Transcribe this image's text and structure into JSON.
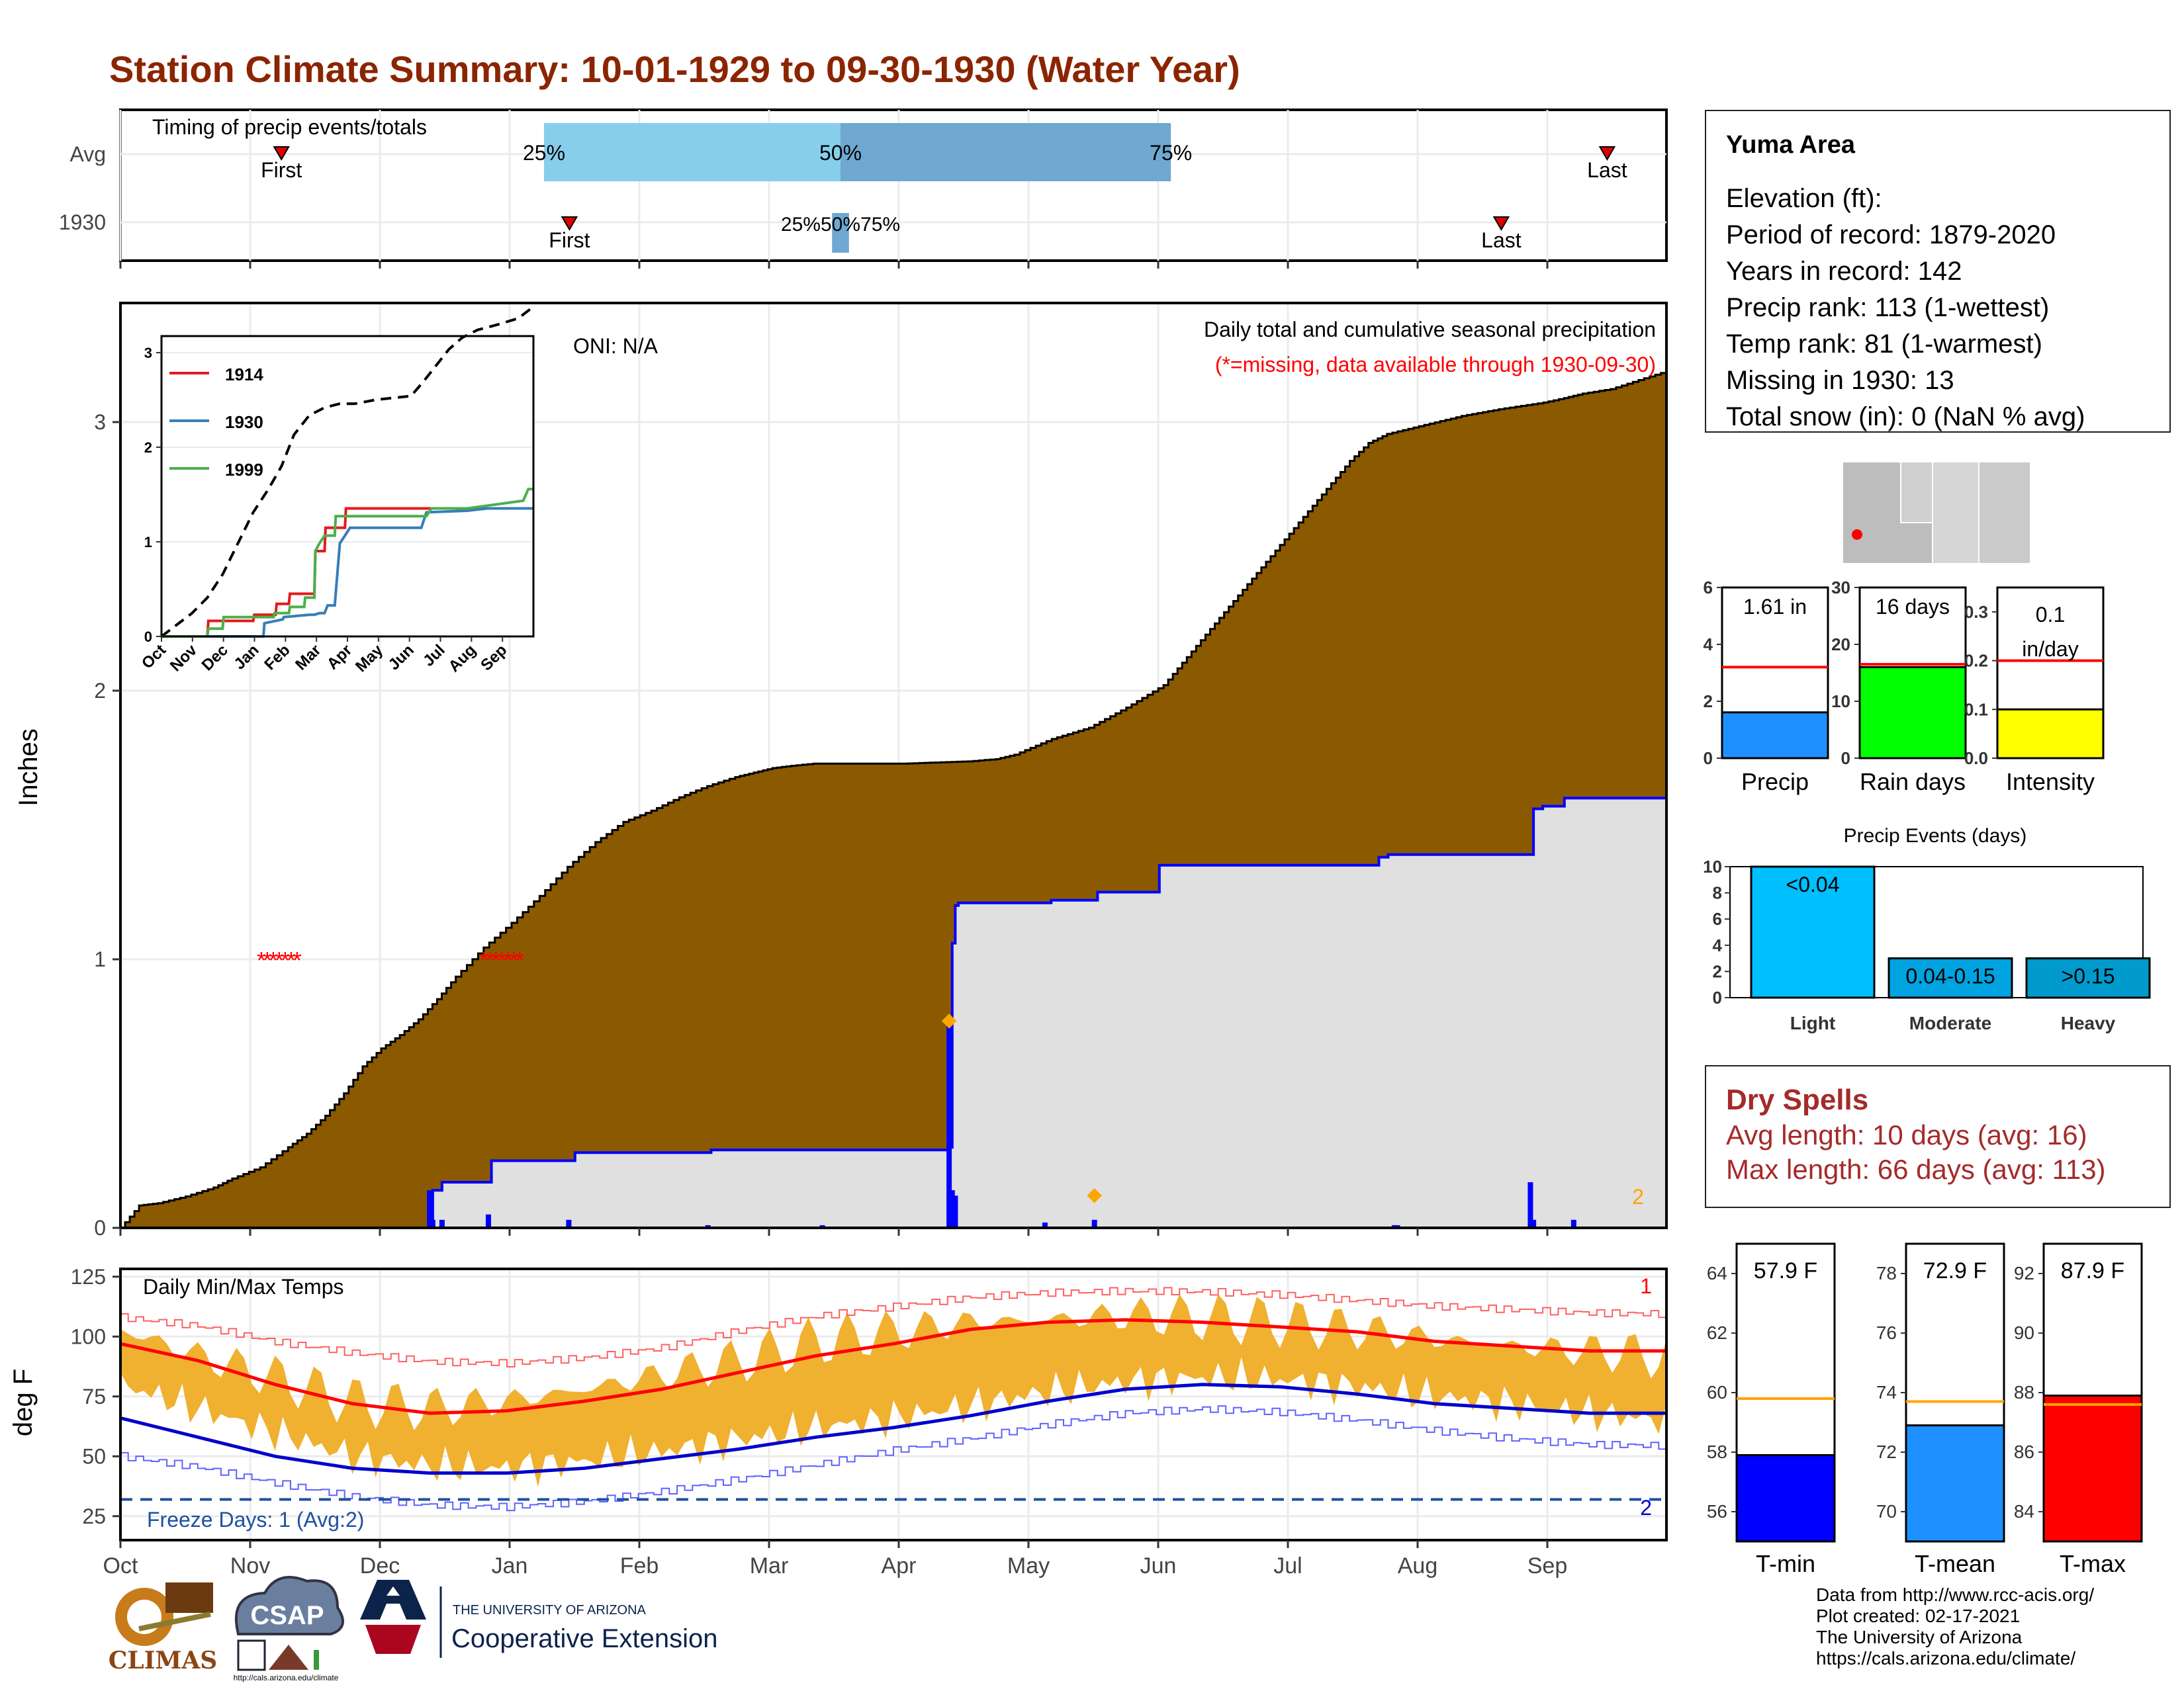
{
  "page": {
    "title": "Station Climate Summary: 10-01-1929 to 09-30-1930 (Water Year)"
  },
  "timing_panel": {
    "label": "Timing of precip events/totals",
    "rows": [
      "Avg",
      "1930"
    ],
    "avg": {
      "q25_label": "25%",
      "q50_label": "50%",
      "q75_label": "75%",
      "first_label": "First",
      "last_label": "Last",
      "first_doy": 38,
      "q25_doy": 100,
      "q50_doy": 170,
      "q75_doy": 248,
      "last_doy": 351
    },
    "year": {
      "q_label": "25%50%75%",
      "first_label": "First",
      "last_label": "Last",
      "first_doy": 106,
      "q25_doy": 168,
      "q75_doy": 172,
      "last_doy": 326
    }
  },
  "precip_panel": {
    "ylabel": "Inches",
    "yticks": [
      "0",
      "1",
      "2",
      "3"
    ],
    "oni": "ONI: N/A",
    "note1": "Daily total and cumulative seasonal precipitation",
    "note2": "(*=missing, data available through 1930-09-30)",
    "missing_marker": "*",
    "corner_label": "2",
    "avg_cumulative": [
      [
        0,
        0
      ],
      [
        5,
        0.05
      ],
      [
        10,
        0.1
      ],
      [
        20,
        0.11
      ],
      [
        35,
        0.14
      ],
      [
        50,
        0.18
      ],
      [
        60,
        0.22
      ],
      [
        75,
        0.27
      ],
      [
        90,
        0.36
      ],
      [
        100,
        0.42
      ],
      [
        110,
        0.5
      ],
      [
        120,
        0.6
      ],
      [
        130,
        0.72
      ],
      [
        140,
        0.8
      ],
      [
        150,
        0.86
      ],
      [
        160,
        0.93
      ],
      [
        170,
        1.02
      ],
      [
        180,
        1.12
      ],
      [
        195,
        1.25
      ],
      [
        210,
        1.36
      ],
      [
        225,
        1.48
      ],
      [
        240,
        1.61
      ],
      [
        255,
        1.72
      ],
      [
        270,
        1.81
      ],
      [
        285,
        1.86
      ],
      [
        300,
        1.92
      ],
      [
        315,
        1.97
      ],
      [
        330,
        2.01
      ],
      [
        340,
        2.03
      ],
      [
        350,
        2.05
      ],
      [
        360,
        2.06
      ],
      [
        372,
        2.07
      ],
      [
        390,
        2.07
      ],
      [
        420,
        2.07
      ],
      [
        455,
        2.08
      ],
      [
        470,
        2.09
      ],
      [
        480,
        2.11
      ],
      [
        500,
        2.18
      ],
      [
        520,
        2.23
      ],
      [
        540,
        2.32
      ],
      [
        560,
        2.42
      ],
      [
        570,
        2.52
      ],
      [
        580,
        2.62
      ],
      [
        590,
        2.72
      ],
      [
        600,
        2.82
      ],
      [
        610,
        2.92
      ],
      [
        620,
        3.02
      ],
      [
        630,
        3.12
      ],
      [
        640,
        3.22
      ],
      [
        650,
        3.32
      ],
      [
        660,
        3.42
      ],
      [
        670,
        3.5
      ],
      [
        680,
        3.54
      ],
      [
        700,
        3.58
      ],
      [
        720,
        3.62
      ],
      [
        740,
        3.65
      ],
      [
        764,
        3.68
      ],
      [
        775,
        3.7
      ],
      [
        785,
        3.72
      ],
      [
        800,
        3.74
      ],
      [
        815,
        3.78
      ],
      [
        830,
        3.82
      ]
    ],
    "year_cumulative": [
      [
        0,
        0
      ],
      [
        100,
        0
      ],
      [
        101,
        0.14
      ],
      [
        104,
        0.17
      ],
      [
        120,
        0.25
      ],
      [
        123,
        0.25
      ],
      [
        145,
        0.25
      ],
      [
        147,
        0.28
      ],
      [
        190,
        0.28
      ],
      [
        191,
        0.29
      ],
      [
        226,
        0.29
      ],
      [
        227,
        0.29
      ],
      [
        267,
        0.29
      ],
      [
        268,
        0.3
      ],
      [
        269,
        1.06
      ],
      [
        270,
        1.2
      ],
      [
        271,
        1.21
      ],
      [
        300,
        1.21
      ],
      [
        301,
        1.22
      ],
      [
        315,
        1.22
      ],
      [
        316,
        1.25
      ],
      [
        335,
        1.25
      ],
      [
        336,
        1.35
      ],
      [
        406,
        1.35
      ],
      [
        407,
        1.38
      ],
      [
        410,
        1.39
      ],
      [
        456,
        1.39
      ],
      [
        457,
        1.56
      ],
      [
        460,
        1.57
      ],
      [
        467,
        1.6
      ],
      [
        500,
        1.6
      ]
    ],
    "daily_bars": [
      [
        100,
        0.14
      ],
      [
        101,
        0.03
      ],
      [
        104,
        0.03
      ],
      [
        119,
        0.05
      ],
      [
        145,
        0.03
      ],
      [
        190,
        0.01
      ],
      [
        227,
        0.01
      ],
      [
        268,
        0.77
      ],
      [
        269,
        0.14
      ],
      [
        270,
        0.12
      ],
      [
        299,
        0.02
      ],
      [
        315,
        0.03
      ],
      [
        412,
        0.01
      ],
      [
        413,
        0.01
      ],
      [
        456,
        0.17
      ],
      [
        457,
        0.03
      ],
      [
        470,
        0.03
      ]
    ],
    "daily_bars_avg": [
      [
        268,
        0.77
      ],
      [
        315,
        0.12
      ]
    ],
    "missing_days": [
      [
        52,
        1.0
      ],
      [
        124,
        1.0
      ]
    ]
  },
  "inset": {
    "yticks": [
      "0",
      "1",
      "2",
      "3"
    ],
    "xticks": [
      "Oct",
      "Nov",
      "Dec",
      "Jan",
      "Feb",
      "Mar",
      "Apr",
      "May",
      "Jun",
      "Jul",
      "Aug",
      "Sep"
    ],
    "legend": [
      {
        "label": "1914",
        "color": "#e41a1c"
      },
      {
        "label": "1930",
        "color": "#377eb8"
      },
      {
        "label": "1999",
        "color": "#4daf4a"
      }
    ],
    "avg_line": [
      [
        0,
        0
      ],
      [
        15,
        0.15
      ],
      [
        30,
        0.3
      ],
      [
        45,
        0.5
      ],
      [
        60,
        0.8
      ],
      [
        75,
        1.2
      ],
      [
        90,
        1.6
      ],
      [
        105,
        1.9
      ],
      [
        118,
        2.2
      ],
      [
        130,
        2.6
      ],
      [
        145,
        2.85
      ],
      [
        160,
        2.95
      ],
      [
        175,
        3.0
      ],
      [
        190,
        3.0
      ],
      [
        210,
        3.05
      ],
      [
        245,
        3.1
      ],
      [
        258,
        3.3
      ],
      [
        270,
        3.5
      ],
      [
        282,
        3.7
      ],
      [
        295,
        3.85
      ],
      [
        310,
        3.95
      ],
      [
        330,
        4.02
      ],
      [
        350,
        4.1
      ],
      [
        365,
        4.25
      ]
    ],
    "series": {
      "1914": [
        [
          0,
          0
        ],
        [
          45,
          0
        ],
        [
          46,
          0.2
        ],
        [
          90,
          0.2
        ],
        [
          91,
          0.28
        ],
        [
          112,
          0.28
        ],
        [
          113,
          0.42
        ],
        [
          125,
          0.42
        ],
        [
          126,
          0.55
        ],
        [
          150,
          0.55
        ],
        [
          151,
          1.1
        ],
        [
          160,
          1.1
        ],
        [
          161,
          1.4
        ],
        [
          180,
          1.4
        ],
        [
          181,
          1.65
        ],
        [
          365,
          1.65
        ]
      ],
      "1930": [
        [
          0,
          0
        ],
        [
          100,
          0
        ],
        [
          101,
          0.17
        ],
        [
          119,
          0.22
        ],
        [
          120,
          0.25
        ],
        [
          145,
          0.28
        ],
        [
          150,
          0.28
        ],
        [
          155,
          0.3
        ],
        [
          160,
          0.3
        ],
        [
          163,
          0.4
        ],
        [
          170,
          0.4
        ],
        [
          175,
          1.2
        ],
        [
          180,
          1.3
        ],
        [
          185,
          1.4
        ],
        [
          255,
          1.4
        ],
        [
          260,
          1.6
        ],
        [
          300,
          1.62
        ],
        [
          320,
          1.65
        ],
        [
          365,
          1.65
        ]
      ],
      "1999": [
        [
          0,
          0
        ],
        [
          45,
          0
        ],
        [
          46,
          0.1
        ],
        [
          60,
          0.1
        ],
        [
          61,
          0.25
        ],
        [
          110,
          0.25
        ],
        [
          111,
          0.3
        ],
        [
          125,
          0.3
        ],
        [
          126,
          0.38
        ],
        [
          140,
          0.38
        ],
        [
          141,
          0.5
        ],
        [
          150,
          0.5
        ],
        [
          151,
          1.1
        ],
        [
          155,
          1.2
        ],
        [
          160,
          1.3
        ],
        [
          170,
          1.3
        ],
        [
          171,
          1.55
        ],
        [
          200,
          1.55
        ],
        [
          260,
          1.55
        ],
        [
          265,
          1.65
        ],
        [
          300,
          1.65
        ],
        [
          355,
          1.75
        ],
        [
          360,
          1.9
        ],
        [
          365,
          1.9
        ]
      ]
    }
  },
  "temp_panel": {
    "ylabel": "deg F",
    "title": "Daily Min/Max Temps",
    "yticks": [
      "25",
      "50",
      "75",
      "100",
      "125"
    ],
    "xticks": [
      "Oct",
      "Nov",
      "Dec",
      "Jan",
      "Feb",
      "Mar",
      "Apr",
      "May",
      "Jun",
      "Jul",
      "Aug",
      "Sep"
    ],
    "freeze": "Freeze Days: 1 (Avg:2)",
    "freeze_line_value": 32,
    "label_top": "1",
    "label_bottom": "2",
    "avg_max": [
      [
        0,
        97
      ],
      [
        30,
        90
      ],
      [
        60,
        80
      ],
      [
        90,
        72
      ],
      [
        120,
        68
      ],
      [
        150,
        69
      ],
      [
        180,
        73
      ],
      [
        210,
        78
      ],
      [
        240,
        85
      ],
      [
        270,
        92
      ],
      [
        300,
        97
      ],
      [
        330,
        103
      ],
      [
        360,
        106
      ],
      [
        390,
        107
      ],
      [
        420,
        106
      ],
      [
        450,
        104
      ],
      [
        480,
        102
      ],
      [
        510,
        98
      ],
      [
        540,
        96
      ],
      [
        570,
        94
      ],
      [
        600,
        94
      ]
    ],
    "avg_min": [
      [
        0,
        66
      ],
      [
        30,
        58
      ],
      [
        60,
        50
      ],
      [
        90,
        45
      ],
      [
        120,
        43
      ],
      [
        150,
        43
      ],
      [
        180,
        45
      ],
      [
        210,
        49
      ],
      [
        240,
        53
      ],
      [
        270,
        58
      ],
      [
        300,
        62
      ],
      [
        330,
        67
      ],
      [
        360,
        73
      ],
      [
        390,
        78
      ],
      [
        420,
        80
      ],
      [
        450,
        79
      ],
      [
        480,
        76
      ],
      [
        510,
        72
      ],
      [
        540,
        70
      ],
      [
        570,
        68
      ],
      [
        600,
        68
      ]
    ],
    "record_max": [
      [
        0,
        108
      ],
      [
        30,
        104
      ],
      [
        60,
        97
      ],
      [
        90,
        92
      ],
      [
        120,
        88
      ],
      [
        150,
        87
      ],
      [
        180,
        89
      ],
      [
        210,
        93
      ],
      [
        240,
        100
      ],
      [
        270,
        106
      ],
      [
        300,
        110
      ],
      [
        330,
        114
      ],
      [
        360,
        116
      ],
      [
        390,
        117
      ],
      [
        420,
        117
      ],
      [
        450,
        116
      ],
      [
        480,
        114
      ],
      [
        510,
        112
      ],
      [
        540,
        111
      ],
      [
        570,
        110
      ],
      [
        600,
        110
      ]
    ],
    "record_min": [
      [
        0,
        50
      ],
      [
        30,
        45
      ],
      [
        60,
        38
      ],
      [
        90,
        32
      ],
      [
        120,
        28
      ],
      [
        150,
        27
      ],
      [
        180,
        29
      ],
      [
        210,
        33
      ],
      [
        240,
        38
      ],
      [
        270,
        44
      ],
      [
        300,
        50
      ],
      [
        330,
        55
      ],
      [
        360,
        61
      ],
      [
        390,
        66
      ],
      [
        420,
        68
      ],
      [
        450,
        67
      ],
      [
        480,
        64
      ],
      [
        510,
        60
      ],
      [
        540,
        57
      ],
      [
        570,
        55
      ],
      [
        600,
        55
      ]
    ],
    "daily_max_env": [
      [
        0,
        103
      ],
      [
        30,
        92
      ],
      [
        60,
        83
      ],
      [
        90,
        73
      ],
      [
        120,
        70
      ],
      [
        150,
        73
      ],
      [
        180,
        78
      ],
      [
        210,
        84
      ],
      [
        240,
        90
      ],
      [
        270,
        98
      ],
      [
        300,
        102
      ],
      [
        330,
        106
      ],
      [
        360,
        107
      ],
      [
        390,
        109
      ],
      [
        420,
        108
      ],
      [
        450,
        106
      ],
      [
        480,
        103
      ],
      [
        510,
        99
      ],
      [
        540,
        96
      ],
      [
        570,
        94
      ],
      [
        600,
        92
      ]
    ],
    "daily_min_env": [
      [
        0,
        80
      ],
      [
        30,
        70
      ],
      [
        60,
        60
      ],
      [
        90,
        50
      ],
      [
        120,
        46
      ],
      [
        150,
        45
      ],
      [
        180,
        48
      ],
      [
        210,
        52
      ],
      [
        240,
        57
      ],
      [
        270,
        62
      ],
      [
        300,
        66
      ],
      [
        330,
        71
      ],
      [
        360,
        77
      ],
      [
        390,
        81
      ],
      [
        420,
        83
      ],
      [
        450,
        82
      ],
      [
        480,
        79
      ],
      [
        510,
        75
      ],
      [
        540,
        72
      ],
      [
        570,
        68
      ],
      [
        600,
        65
      ]
    ]
  },
  "side_precip": {
    "precip": {
      "label": "Precip",
      "value_label": "1.61 in",
      "yticks": [
        "0",
        "2",
        "4",
        "6"
      ],
      "ymax": 6,
      "value": 1.61,
      "avg": 3.2,
      "color": "#1e90ff"
    },
    "raindays": {
      "label": "Rain days",
      "value_label": "16 days",
      "yticks": [
        "0",
        "10",
        "20",
        "30"
      ],
      "ymax": 30,
      "value": 16,
      "avg": 16.5,
      "color": "#00ff00"
    },
    "intensity": {
      "label": "Intensity",
      "value_label_1": "0.1",
      "value_label_2": "in/day",
      "yticks": [
        "0.0",
        "0.1",
        "0.2",
        "0.3"
      ],
      "ymax": 0.35,
      "value": 0.1,
      "avg": 0.2,
      "color": "#ffff00"
    }
  },
  "events": {
    "title": "Precip Events (days)",
    "yticks": [
      "0",
      "2",
      "4",
      "6",
      "8",
      "10"
    ],
    "bars": [
      {
        "cat": "Light",
        "bar_label": "<0.04",
        "value": 10,
        "color": "#00bfff"
      },
      {
        "cat": "Moderate",
        "bar_label": "0.04-0.15",
        "value": 3,
        "color": "#00a3e0"
      },
      {
        "cat": "Heavy",
        "bar_label": ">0.15",
        "value": 3,
        "color": "#009acd"
      }
    ]
  },
  "station": {
    "name": "Yuma Area",
    "lines": [
      "Elevation (ft):",
      "Period of record: 1879-2020",
      "Years in record: 142",
      "Precip rank: 113 (1-wettest)",
      "Temp rank: 81 (1-warmest)",
      "Missing in 1930: 13",
      "Total snow (in): 0 (NaN % avg)"
    ]
  },
  "dry_spells": {
    "title": "Dry Spells",
    "avg": "Avg length: 10 days (avg: 16)",
    "max": "Max length: 66 days (avg: 113)"
  },
  "side_temp": {
    "tmin": {
      "label": "T-min",
      "value_label": "57.9 F",
      "yticks": [
        "56",
        "58",
        "60",
        "62",
        "64"
      ],
      "ymin": 55,
      "ymax": 65,
      "value": 57.9,
      "avg": 59.8,
      "color": "#0000ff"
    },
    "tmean": {
      "label": "T-mean",
      "value_label": "72.9 F",
      "yticks": [
        "70",
        "72",
        "74",
        "76",
        "78"
      ],
      "ymin": 69,
      "ymax": 79,
      "value": 72.9,
      "avg": 73.7,
      "color": "#1e90ff"
    },
    "tmax": {
      "label": "T-max",
      "value_label": "87.9 F",
      "yticks": [
        "84",
        "86",
        "88",
        "90",
        "92"
      ],
      "ymin": 83,
      "ymax": 93,
      "value": 87.9,
      "avg": 87.6,
      "color": "#ff0000"
    }
  },
  "credits": [
    "Data from http://www.rcc-acis.org/",
    "Plot created: 02-17-2021",
    "The University of Arizona",
    "https://cals.arizona.edu/climate/"
  ],
  "logos": {
    "climas": "CLIMAS",
    "csap": "CSAP",
    "csap_url": "http://cals.arizona.edu/climate",
    "ua_small": "THE UNIVERSITY OF ARIZONA",
    "ua_big": "Cooperative Extension"
  }
}
